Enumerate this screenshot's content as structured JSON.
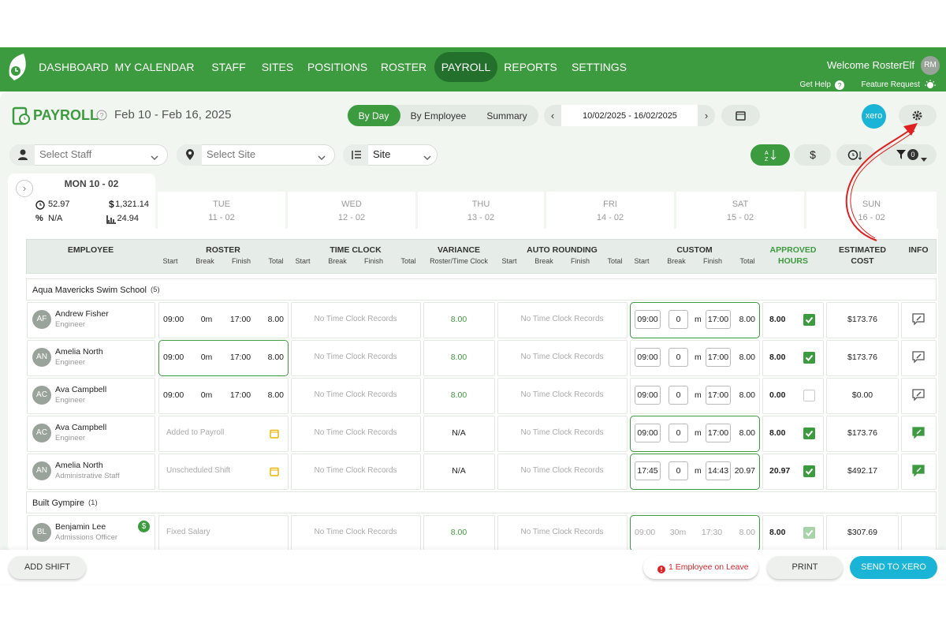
{
  "nav": {
    "items": [
      "DASHBOARD",
      "MY CALENDAR",
      "STAFF",
      "SITES",
      "POSITIONS",
      "ROSTER",
      "PAYROLL",
      "REPORTS",
      "SETTINGS"
    ],
    "active": 6,
    "welcome": "Welcome RosterElf",
    "avatar": "RM",
    "get_help": "Get Help",
    "feature_request": "Feature Request"
  },
  "header": {
    "title": "PAYROLL",
    "date_range": "Feb 10 - Feb 16, 2025",
    "tabs": [
      "By Day",
      "By Employee",
      "Summary"
    ],
    "period": "10/02/2025 - 16/02/2025",
    "xero": "xero"
  },
  "filters": {
    "staff": "Select Staff",
    "site": "Select Site",
    "group": "Site",
    "filter_count": "0"
  },
  "selected_day": {
    "title": "MON 10 - 02",
    "hours": "52.97",
    "cost_symbol": "$",
    "cost": "1,321.14",
    "variance_symbol": "%",
    "variance": "N/A",
    "ratio": "24.94"
  },
  "days": [
    {
      "name": "TUE",
      "date": "11 - 02"
    },
    {
      "name": "WED",
      "date": "12 - 02"
    },
    {
      "name": "THU",
      "date": "13 - 02"
    },
    {
      "name": "FRI",
      "date": "14 - 02"
    },
    {
      "name": "SAT",
      "date": "15 - 02"
    },
    {
      "name": "SUN",
      "date": "16 - 02"
    }
  ],
  "table": {
    "columns": {
      "employee": "EMPLOYEE",
      "roster": "ROSTER",
      "time_clock": "TIME CLOCK",
      "variance": "VARIANCE",
      "variance_sub": "Roster/Time Clock",
      "auto_rounding": "AUTO ROUNDING",
      "custom": "CUSTOM",
      "approved": "APPROVED",
      "approved_2": "HOURS",
      "cost": "ESTIMATED",
      "cost_2": "COST",
      "info": "INFO",
      "sub": [
        "Start",
        "Break",
        "Finish",
        "Total"
      ]
    },
    "break_unit": "m",
    "groups": [
      {
        "name": "Aqua Mavericks Swim School",
        "count": "(5)",
        "rows": [
          {
            "initials": "AF",
            "name": "Andrew Fisher",
            "role": "Engineer",
            "roster": [
              "09:00",
              "0m",
              "17:00",
              "8.00"
            ],
            "time_clock": "No Time Clock Records",
            "variance": "8.00",
            "auto_rounding": "No Time Clock Records",
            "custom": [
              "09:00",
              "0",
              "17:00",
              "8.00"
            ],
            "custom_highlight": true,
            "approved": "8.00",
            "checked": true,
            "cost": "$173.76",
            "info": "gray"
          },
          {
            "initials": "AN",
            "name": "Amelia North",
            "role": "Engineer",
            "roster": [
              "09:00",
              "0m",
              "17:00",
              "8.00"
            ],
            "roster_highlight": true,
            "time_clock": "No Time Clock Records",
            "variance": "8.00",
            "auto_rounding": "No Time Clock Records",
            "custom": [
              "09:00",
              "0",
              "17:00",
              "8.00"
            ],
            "approved": "8.00",
            "checked": true,
            "cost": "$173.76",
            "info": "gray"
          },
          {
            "initials": "AC",
            "name": "Ava Campbell",
            "role": "Engineer",
            "roster": [
              "09:00",
              "0m",
              "17:00",
              "8.00"
            ],
            "time_clock": "No Time Clock Records",
            "variance": "8.00",
            "auto_rounding": "No Time Clock Records",
            "custom": [
              "09:00",
              "0",
              "17:00",
              "8.00"
            ],
            "approved": "0.00",
            "checked": false,
            "cost": "$0.00",
            "info": "gray"
          },
          {
            "initials": "AC",
            "name": "Ava Campbell",
            "role": "Engineer",
            "roster_note": "Added to Payroll",
            "time_clock": "No Time Clock Records",
            "variance": "N/A",
            "auto_rounding": "No Time Clock Records",
            "custom": [
              "09:00",
              "0",
              "17:00",
              "8.00"
            ],
            "custom_highlight": true,
            "approved": "8.00",
            "checked": true,
            "cost": "$173.76",
            "info": "green"
          },
          {
            "initials": "AN",
            "name": "Amelia North",
            "role": "Administrative Staff",
            "roster_note": "Unscheduled Shift",
            "time_clock": "No Time Clock Records",
            "variance": "N/A",
            "auto_rounding": "No Time Clock Records",
            "custom": [
              "17:45",
              "0",
              "14:43",
              "20.97"
            ],
            "custom_highlight": true,
            "approved": "20.97",
            "checked": true,
            "cost": "$492.17",
            "info": "green"
          }
        ]
      },
      {
        "name": "Built Gympire",
        "count": "(1)",
        "rows": [
          {
            "initials": "BL",
            "name": "Benjamin Lee",
            "role": "Admissions Officer",
            "salary_badge": "$",
            "roster_note": "Fixed Salary",
            "time_clock": "No Time Clock Records",
            "variance": "8.00",
            "auto_rounding": "No Time Clock Records",
            "custom_text": [
              "09:00",
              "30m",
              "17:30",
              "8.00"
            ],
            "custom_highlight": true,
            "approved": "8.00",
            "checked": true,
            "cost": "$307.69"
          }
        ]
      }
    ]
  },
  "footer": {
    "add_shift": "ADD SHIFT",
    "leave": "1 Employee on Leave",
    "print": "PRINT",
    "send": "SEND TO XERO"
  }
}
